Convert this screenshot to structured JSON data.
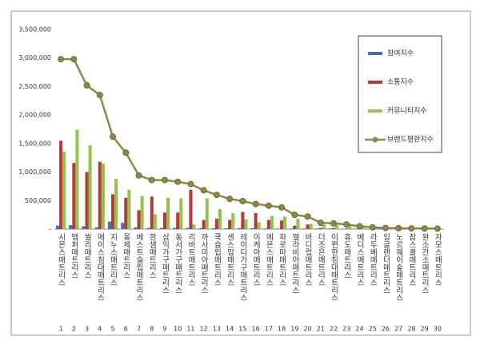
{
  "chart_data": {
    "type": "bar-line",
    "categories": [
      "시몬스매트리스",
      "템퍼매트리스",
      "씰리매트리스",
      "에이스침대매트리스",
      "지누스매트리스",
      "몽제매트리스",
      "베스트슬립매트리스",
      "한샘매트리스",
      "삼익가구매트리스",
      "동서가구매트리스",
      "리바트매트리스",
      "까사미아매트리스",
      "쿡슬립매트리스",
      "센스맘매트리스",
      "레이디가구매트리스",
      "이케아매트리스",
      "에몬스매트리스",
      "파로마매트리스",
      "엘라비아매트리스",
      "바디럽매트리스",
      "더조은매트리스",
      "이편한침대매트리스",
      "휴도매트리스",
      "베디스매트리스",
      "라두베매트리스",
      "잉글랜더매트리스",
      "노르웨이숲매트리스",
      "잠스쿨매트리스",
      "완소간소매트리스",
      "자모스매트리스"
    ],
    "ranks": [
      1,
      2,
      3,
      4,
      5,
      6,
      7,
      8,
      9,
      10,
      11,
      12,
      13,
      14,
      15,
      16,
      17,
      18,
      19,
      20,
      21,
      22,
      23,
      24,
      25,
      26,
      27,
      28,
      29,
      30
    ],
    "series": [
      {
        "name": "참여지수",
        "color": "#4a6fa5",
        "kind": "bar",
        "values": [
          60000,
          70000,
          50000,
          30000,
          130000,
          110000,
          30000,
          20000,
          20000,
          20000,
          20000,
          15000,
          15000,
          15000,
          15000,
          15000,
          10000,
          10000,
          10000,
          10000,
          10000,
          10000,
          5000,
          5000,
          5000,
          5000,
          5000,
          5000,
          5000,
          5000
        ]
      },
      {
        "name": "소통지수",
        "color": "#b33b3b",
        "kind": "bar",
        "values": [
          1550000,
          1160000,
          1000000,
          1180000,
          610000,
          550000,
          330000,
          570000,
          290000,
          290000,
          690000,
          160000,
          180000,
          160000,
          300000,
          280000,
          160000,
          150000,
          60000,
          80000,
          20000,
          20000,
          10000,
          5000,
          5000,
          5000,
          5000,
          5000,
          5000,
          5000
        ]
      },
      {
        "name": "커뮤니티지수",
        "color": "#94c24f",
        "kind": "bar",
        "values": [
          1360000,
          1740000,
          1470000,
          1150000,
          880000,
          690000,
          580000,
          260000,
          550000,
          540000,
          80000,
          540000,
          350000,
          280000,
          170000,
          120000,
          230000,
          220000,
          180000,
          90000,
          80000,
          70000,
          50000,
          40000,
          20000,
          10000,
          8000,
          6000,
          5000,
          3000
        ]
      },
      {
        "name": "브랜드평판지수",
        "color": "#8c8a4a",
        "kind": "line",
        "values": [
          2980000,
          2980000,
          2520000,
          2350000,
          1620000,
          1340000,
          940000,
          860000,
          860000,
          830000,
          790000,
          680000,
          600000,
          530000,
          490000,
          440000,
          410000,
          380000,
          250000,
          220000,
          110000,
          100000,
          80000,
          50000,
          30000,
          20000,
          15000,
          12000,
          10000,
          8000
        ]
      }
    ],
    "ylim": [
      0,
      3500000
    ],
    "yticks": [
      {
        "value": 0,
        "label": "-"
      },
      {
        "value": 500000,
        "label": "500,000"
      },
      {
        "value": 1000000,
        "label": "1,000,000"
      },
      {
        "value": 1500000,
        "label": "1,500,000"
      },
      {
        "value": 2000000,
        "label": "2,000,000"
      },
      {
        "value": 2500000,
        "label": "2,500,000"
      },
      {
        "value": 3000000,
        "label": "3,000,000"
      },
      {
        "value": 3500000,
        "label": "3,500,000"
      }
    ]
  }
}
